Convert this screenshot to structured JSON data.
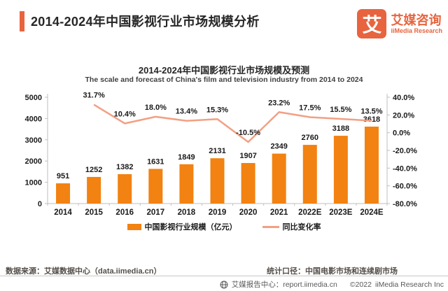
{
  "header": {
    "title": "2014-2024年中国影视行业市场规模分析",
    "logo": {
      "mark": "艾",
      "cn": "艾媒咨询",
      "en": "iiMedia Research"
    }
  },
  "chart_data": {
    "type": "combo_bar_line",
    "title": "2014-2024年中国影视行业市场规模及预测",
    "subtitle": "The scale and forecast of China's film and television industry from 2014 to 2024",
    "categories": [
      "2014",
      "2015",
      "2016",
      "2017",
      "2018",
      "2019",
      "2020",
      "2021",
      "2022E",
      "2023E",
      "2024E"
    ],
    "series": [
      {
        "name": "中国影视行业规模（亿元）",
        "type": "bar",
        "axis": "left",
        "color": "#F28211",
        "values": [
          951,
          1252,
          1382,
          1631,
          1849,
          2131,
          1907,
          2349,
          2760,
          3188,
          3618
        ]
      },
      {
        "name": "同比变化率",
        "type": "line",
        "axis": "right",
        "color": "#F2A083",
        "label_format": "percent1",
        "values": [
          null,
          31.7,
          10.4,
          18.0,
          13.4,
          15.3,
          -10.5,
          23.2,
          17.5,
          15.5,
          13.5
        ]
      }
    ],
    "left_axis": {
      "min": 0,
      "max": 5000,
      "ticks": [
        0,
        1000,
        2000,
        3000,
        4000,
        5000
      ]
    },
    "right_axis": {
      "min": -80,
      "max": 40,
      "ticks": [
        40,
        20,
        0,
        -20,
        -40,
        -60,
        -80
      ],
      "format": "percent1"
    },
    "grid": false,
    "legend_position": "bottom"
  },
  "footer": {
    "source": "数据来源：艾媒数据中心（data.iimedia.cn）",
    "caliber": "统计口径：中国电影市场和连续剧市场",
    "report_center": "艾媒报告中心：report.iimedia.cn",
    "copyright": "©2022",
    "company": "iiMedia Research  Inc"
  },
  "colors": {
    "accent": "#E8643E",
    "bar": "#F28211",
    "line": "#F2A083"
  }
}
